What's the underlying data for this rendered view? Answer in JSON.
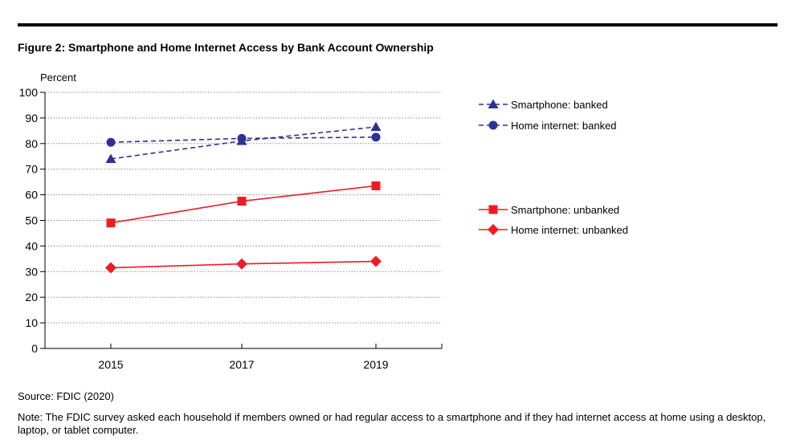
{
  "figure": {
    "title": "Figure 2: Smartphone and Home Internet Access by Bank Account Ownership",
    "source": "Source: FDIC (2020)",
    "note": "Note: The FDIC survey asked each household if members owned or had regular access to a smartphone and if they had internet access at home using a desktop, laptop, or tablet computer."
  },
  "chart_data": {
    "type": "line",
    "title": "Figure 2: Smartphone and Home Internet Access by Bank Account Ownership",
    "ylabel": "Percent",
    "xlabel": "",
    "categories": [
      "2015",
      "2017",
      "2019"
    ],
    "ylim": [
      0,
      100
    ],
    "yticks": [
      0,
      10,
      20,
      30,
      40,
      50,
      60,
      70,
      80,
      90,
      100
    ],
    "grid": "horizontal dotted",
    "legend": "right",
    "series": [
      {
        "name": "Smartphone: banked",
        "values": [
          74,
          81,
          86.5
        ],
        "color": "#2e3192",
        "dash": "dashed",
        "marker": "triangle"
      },
      {
        "name": "Home internet: banked",
        "values": [
          80.5,
          82,
          82.5
        ],
        "color": "#2e3192",
        "dash": "dashed",
        "marker": "circle"
      },
      {
        "name": "Smartphone: unbanked",
        "values": [
          49,
          57.5,
          63.5
        ],
        "color": "#ed1c24",
        "dash": "solid",
        "marker": "square"
      },
      {
        "name": "Home internet: unbanked",
        "values": [
          31.5,
          33,
          34
        ],
        "color": "#ed1c24",
        "dash": "solid",
        "marker": "diamond"
      }
    ]
  }
}
